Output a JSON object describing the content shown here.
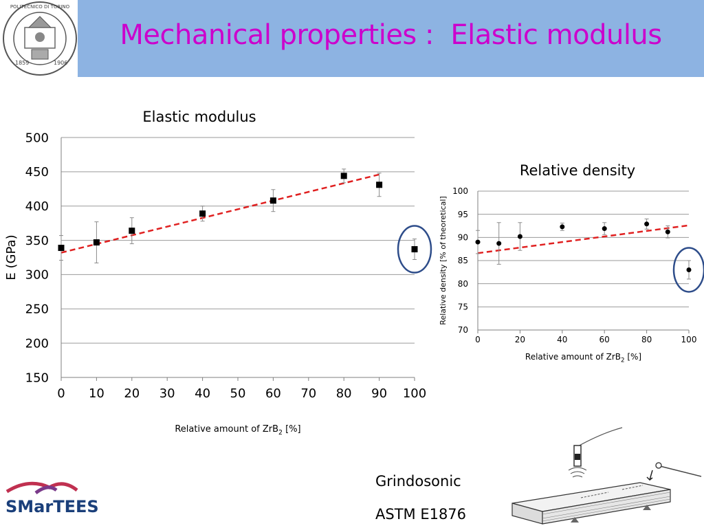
{
  "slide": {
    "title": "Mechanical properties :  Elastic modulus"
  },
  "logo": {
    "institution": "POLITECNICO DI TORINO",
    "year_left": "1859",
    "year_right": "1906"
  },
  "footer": {
    "method": "Grindosonic",
    "standard": "ASTM E1876",
    "brand": "SMarTEES"
  },
  "colors": {
    "header_band": "#8db3e2",
    "title": "#cc00cc",
    "trendline": "#e02020",
    "highlight_circle": "#2e4d8a"
  },
  "chart_data": [
    {
      "type": "scatter",
      "title": "Elastic modulus",
      "xlabel": "Relative amount of ZrB2 [%]",
      "ylabel": "E (GPa)",
      "xlim": [
        0,
        100
      ],
      "ylim": [
        150,
        500
      ],
      "xticks": [
        0,
        10,
        20,
        30,
        40,
        50,
        60,
        70,
        80,
        90,
        100
      ],
      "yticks": [
        150,
        200,
        250,
        300,
        350,
        400,
        450,
        500
      ],
      "grid": true,
      "marker": "square",
      "series": [
        {
          "x": [
            0,
            10,
            20,
            40,
            60,
            80,
            90,
            100
          ],
          "y": [
            339,
            347,
            364,
            389,
            408,
            444,
            431,
            337
          ],
          "err": [
            18,
            30,
            19,
            11,
            16,
            10,
            17,
            15
          ]
        }
      ],
      "trendline": {
        "x": [
          0,
          90
        ],
        "y": [
          332,
          446
        ],
        "style": "dashed"
      },
      "highlight": {
        "x": 100,
        "y": 337
      }
    },
    {
      "type": "scatter",
      "title": "Relative density",
      "xlabel": "Relative amount of ZrB2 [%]",
      "ylabel": "Relative density [% of theoretical]",
      "xlim": [
        0,
        100
      ],
      "ylim": [
        70,
        100
      ],
      "xticks": [
        0,
        20,
        40,
        60,
        80,
        100
      ],
      "yticks": [
        70,
        75,
        80,
        85,
        90,
        95,
        100
      ],
      "grid": true,
      "marker": "circle",
      "series": [
        {
          "x": [
            0,
            10,
            20,
            40,
            60,
            80,
            90,
            100
          ],
          "y": [
            89,
            88.7,
            90.2,
            92.3,
            91.9,
            92.9,
            91.2,
            83
          ],
          "err": [
            2.5,
            4.5,
            3,
            0.8,
            1.3,
            1.1,
            1.3,
            2
          ]
        }
      ],
      "trendline": {
        "x": [
          0,
          100
        ],
        "y": [
          86.6,
          92.6
        ],
        "style": "dashed"
      },
      "highlight": {
        "x": 100,
        "y": 83
      }
    }
  ]
}
